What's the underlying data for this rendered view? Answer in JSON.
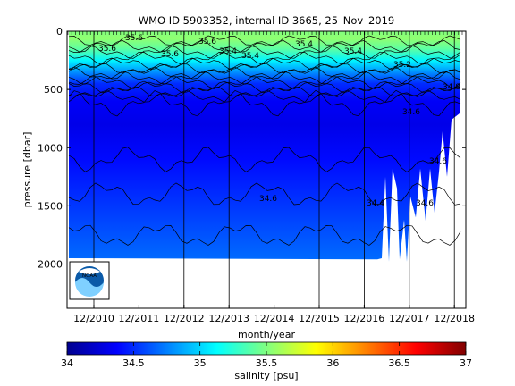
{
  "chart_data": {
    "type": "heatmap",
    "title": "WMO ID 5903352, internal ID 3665, 25–Nov–2019",
    "xlabel": "month/year",
    "ylabel": "pressure [dbar]",
    "x_tick_labels": [
      "12/2010",
      "12/2011",
      "12/2012",
      "12/2013",
      "12/2014",
      "12/2015",
      "12/2016",
      "12/2017",
      "12/2018"
    ],
    "xlim": [
      "2010-11",
      "2019-11"
    ],
    "ylim": [
      2380,
      0
    ],
    "y_reversed": true,
    "y_ticks": [
      0,
      500,
      1000,
      1500,
      2000
    ],
    "grid": "vertical lines at x ticks",
    "colorbar": {
      "label": "salinity [psu]",
      "range": [
        34,
        37
      ],
      "ticks": [
        34,
        34.5,
        35,
        35.5,
        36,
        36.5,
        37
      ],
      "tick_labels": [
        "34",
        "34.5",
        "35",
        "35.5",
        "36",
        "36.5",
        "37"
      ],
      "colors": [
        "#00008f",
        "#0000ff",
        "#0080ff",
        "#00ffff",
        "#80ff80",
        "#ffff00",
        "#ff8000",
        "#ff0000",
        "#800000"
      ]
    },
    "salinity_profile": [
      {
        "pressure": 0,
        "salinity": 35.5
      },
      {
        "pressure": 60,
        "salinity": 35.55
      },
      {
        "pressure": 150,
        "salinity": 35.4
      },
      {
        "pressure": 250,
        "salinity": 35.1
      },
      {
        "pressure": 350,
        "salinity": 34.8
      },
      {
        "pressure": 450,
        "salinity": 34.5
      },
      {
        "pressure": 600,
        "salinity": 34.35
      },
      {
        "pressure": 800,
        "salinity": 34.3
      },
      {
        "pressure": 1100,
        "salinity": 34.4
      },
      {
        "pressure": 1400,
        "salinity": 34.5
      },
      {
        "pressure": 1700,
        "salinity": 34.6
      },
      {
        "pressure": 2000,
        "salinity": 34.7
      }
    ],
    "max_profile_depth": 1950,
    "contour_labels": [
      "35.6",
      "35.6",
      "35.6",
      "35.6",
      "35.4",
      "35.4",
      "35.4",
      "35.4",
      "35.2",
      "34.8",
      "34.6",
      "34.4",
      "34.6",
      "34.6",
      "34.6"
    ]
  },
  "logo": {
    "name": "noaa-logo",
    "text": "NOAA"
  }
}
